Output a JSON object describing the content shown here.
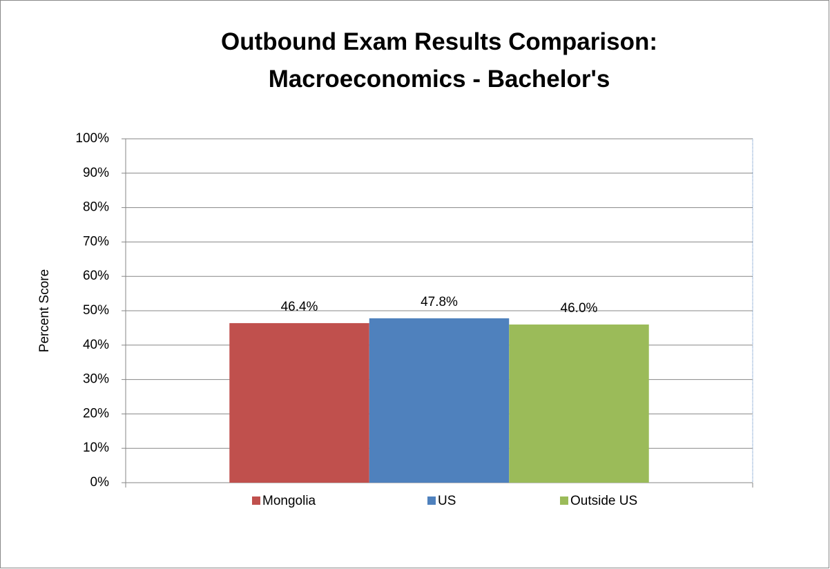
{
  "chart_data": {
    "type": "bar",
    "title": "Outbound Exam Results Comparison: Macroeconomics - Bachelor's",
    "y_label": "Percent Score",
    "categories": [
      null
    ],
    "series": [
      {
        "name": "Mongolia",
        "color": "#c0504d",
        "values": [
          46.4
        ],
        "value_labels": [
          "46.4%"
        ]
      },
      {
        "name": "US",
        "color": "#4f81bd",
        "values": [
          47.8
        ],
        "value_labels": [
          "47.8%"
        ]
      },
      {
        "name": "Outside US",
        "color": "#9bbb59",
        "values": [
          46.0
        ],
        "value_labels": [
          "46.0%"
        ]
      }
    ],
    "ylim": [
      0,
      100
    ],
    "yticks": [
      {
        "value": 0,
        "label": "0%"
      },
      {
        "value": 10,
        "label": "10%"
      },
      {
        "value": 20,
        "label": "20%"
      },
      {
        "value": 30,
        "label": "30%"
      },
      {
        "value": 40,
        "label": "40%"
      },
      {
        "value": 50,
        "label": "50%"
      },
      {
        "value": 60,
        "label": "60%"
      },
      {
        "value": 70,
        "label": "70%"
      },
      {
        "value": 80,
        "label": "80%"
      },
      {
        "value": 90,
        "label": "90%"
      },
      {
        "value": 100,
        "label": "100%"
      }
    ],
    "grid": true,
    "legend": "bottom"
  }
}
